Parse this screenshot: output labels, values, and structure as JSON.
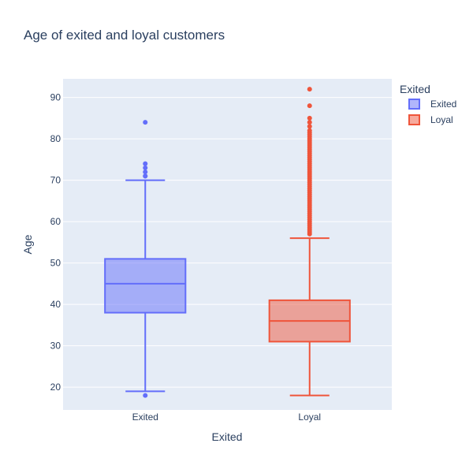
{
  "chart_data": {
    "type": "box",
    "title": "Age of exited and loyal customers",
    "xlabel": "Exited",
    "ylabel": "Age",
    "categories": [
      "Exited",
      "Loyal"
    ],
    "ylim": [
      14.5,
      94.5
    ],
    "yticks": [
      20,
      30,
      40,
      50,
      60,
      70,
      80,
      90
    ],
    "grid": true,
    "legend": {
      "title": "Exited",
      "placement": "top-right",
      "entries": [
        "Exited",
        "Loyal"
      ]
    },
    "series": [
      {
        "name": "Exited",
        "color": "#636efa",
        "lower_fence": 19,
        "q1": 38,
        "median": 45,
        "q3": 51,
        "upper_fence": 70,
        "outliers": [
          18,
          71,
          71,
          72,
          73,
          74,
          84
        ]
      },
      {
        "name": "Loyal",
        "color": "#ef553b",
        "lower_fence": 18,
        "q1": 31,
        "median": 36,
        "q3": 41,
        "upper_fence": 56,
        "outliers": [
          57,
          57.5,
          58,
          58.5,
          59,
          59.5,
          60,
          60.5,
          61,
          61.5,
          62,
          62.5,
          63,
          63.5,
          64,
          64.5,
          65,
          65.5,
          66,
          66.5,
          67,
          67.5,
          68,
          68.5,
          69,
          69.5,
          70,
          70.5,
          71,
          71.5,
          72,
          72.5,
          73,
          73.5,
          74,
          74.5,
          75,
          75.5,
          76,
          76.5,
          77,
          77.5,
          78,
          78.5,
          79,
          79.5,
          80,
          80.5,
          81,
          81.5,
          82,
          83,
          84,
          85,
          88,
          92
        ]
      }
    ]
  }
}
